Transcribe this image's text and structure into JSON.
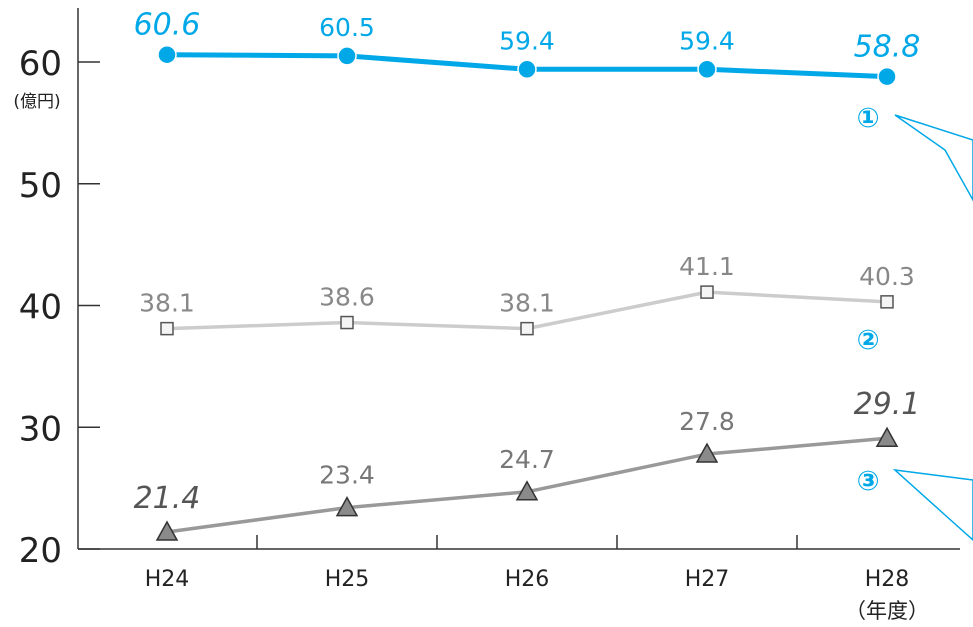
{
  "chart_data": {
    "type": "line",
    "categories": [
      "H24",
      "H25",
      "H26",
      "H27",
      "H28"
    ],
    "x_unit": "（年度）",
    "y_unit": "(億円)",
    "ylim": [
      20,
      65
    ],
    "yticks": [
      20,
      30,
      40,
      50,
      60
    ],
    "grid": false,
    "series": [
      {
        "marker_label": "①",
        "values": [
          60.6,
          60.5,
          59.4,
          59.4,
          58.8
        ],
        "value_labels": [
          "60.6",
          "60.5",
          "59.4",
          "59.4",
          "58.8"
        ],
        "color": "#00A8E8",
        "marker": "circle",
        "emphasized_points": [
          0,
          4
        ]
      },
      {
        "marker_label": "②",
        "values": [
          38.1,
          38.6,
          38.1,
          41.1,
          40.3
        ],
        "value_labels": [
          "38.1",
          "38.6",
          "38.1",
          "41.1",
          "40.3"
        ],
        "color": "#CCCCCC",
        "marker": "square",
        "emphasized_points": []
      },
      {
        "marker_label": "③",
        "values": [
          21.4,
          23.4,
          24.7,
          27.8,
          29.1
        ],
        "value_labels": [
          "21.4",
          "23.4",
          "24.7",
          "27.8",
          "29.1"
        ],
        "color": "#999999",
        "marker": "triangle",
        "emphasized_points": [
          0,
          4
        ]
      }
    ]
  }
}
